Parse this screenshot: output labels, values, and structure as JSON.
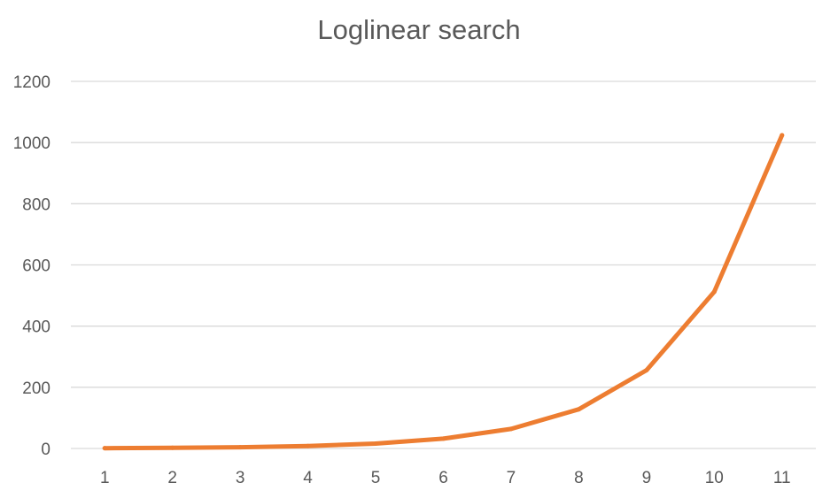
{
  "chart_data": {
    "type": "line",
    "title": "Loglinear search",
    "xlabel": "",
    "ylabel": "",
    "categories": [
      "1",
      "2",
      "3",
      "4",
      "5",
      "6",
      "7",
      "8",
      "9",
      "10",
      "11"
    ],
    "series": [
      {
        "values": [
          1,
          2,
          4,
          8,
          16,
          32,
          64,
          128,
          256,
          512,
          1024
        ],
        "color": "#ed7d31"
      }
    ],
    "ylim": [
      0,
      1200
    ],
    "yticks": [
      0,
      200,
      400,
      600,
      800,
      1000,
      1200
    ],
    "grid": true,
    "legend": "none"
  }
}
